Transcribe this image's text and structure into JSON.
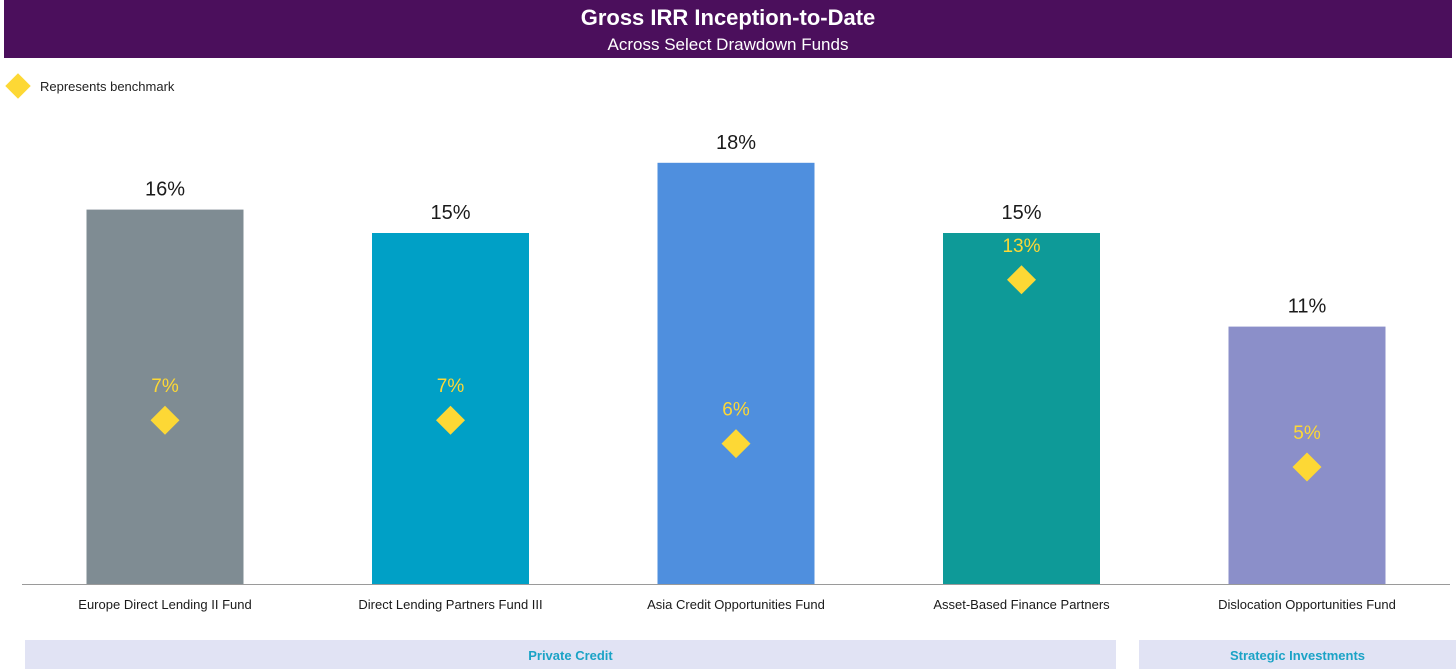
{
  "chart_data": {
    "type": "bar",
    "title": "Gross IRR Inception-to-Date",
    "subtitle": "Across Select Drawdown Funds",
    "categories": [
      "Europe Direct Lending II Fund",
      "Direct Lending Partners Fund III",
      "Asia Credit Opportunities Fund",
      "Asset-Based Finance Partners",
      "Dislocation Opportunities Fund"
    ],
    "series": [
      {
        "name": "Gross IRR",
        "values": [
          16,
          15,
          18,
          15,
          11
        ],
        "labels": [
          "16%",
          "15%",
          "18%",
          "15%",
          "11%"
        ],
        "colors": [
          "#7f8c93",
          "#00a0c6",
          "#4f8fde",
          "#0e9a98",
          "#8b8fc9"
        ]
      },
      {
        "name": "Benchmark",
        "marker": "diamond",
        "values": [
          7,
          7,
          6,
          13,
          5
        ],
        "labels": [
          "7%",
          "7%",
          "6%",
          "13%",
          "5%"
        ],
        "color": "#fdd835"
      }
    ],
    "ylim": [
      0,
      18
    ],
    "legend": {
      "position": "top-left",
      "label": "Represents benchmark"
    },
    "groups": [
      {
        "name": "Private Credit",
        "categories": [
          0,
          1,
          2,
          3
        ]
      },
      {
        "name": "Strategic Investments",
        "categories": [
          4
        ]
      }
    ]
  },
  "colors": {
    "header_bg": "#4b0f5c",
    "header_text": "#ffffff",
    "value_label": "#1a1a1a",
    "benchmark": "#fdd835",
    "group_band_bg": "#e1e3f4",
    "group_band_text": "#1ba3c6",
    "axis": "#9a9a9a"
  }
}
